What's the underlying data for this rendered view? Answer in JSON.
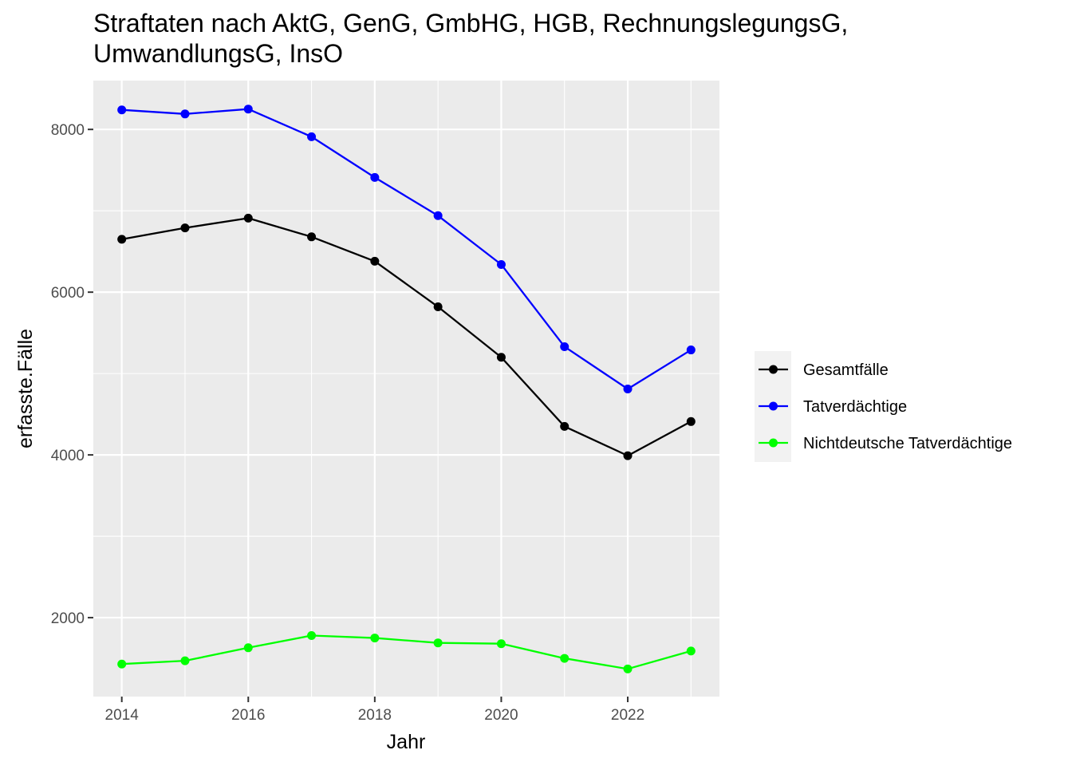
{
  "chart_data": {
    "type": "line",
    "title_lines": [
      "Straftaten nach AktG, GenG, GmbHG, HGB, RechnungslegungsG,",
      "UmwandlungsG, InsO"
    ],
    "xlabel": "Jahr",
    "ylabel": "erfasste.Fälle",
    "x": [
      2014,
      2015,
      2016,
      2017,
      2018,
      2019,
      2020,
      2021,
      2022,
      2023
    ],
    "xlim": [
      2013.55,
      2023.45
    ],
    "ylim": [
      1030,
      8600
    ],
    "x_ticks": [
      2014,
      2016,
      2018,
      2020,
      2022
    ],
    "y_ticks": [
      2000,
      4000,
      6000,
      8000
    ],
    "x_tick_labels": [
      "2014",
      "2016",
      "2018",
      "2020",
      "2022"
    ],
    "y_tick_labels": [
      "2000",
      "4000",
      "6000",
      "8000"
    ],
    "grid": true,
    "legend_position": "right",
    "series": [
      {
        "name": "Gesamtfälle",
        "color": "#000000",
        "values": [
          6650,
          6790,
          6910,
          6680,
          6380,
          5820,
          5200,
          4350,
          3990,
          4410
        ]
      },
      {
        "name": "Tatverdächtige",
        "color": "#0000ff",
        "values": [
          8240,
          8190,
          8250,
          7910,
          7410,
          6940,
          6340,
          5330,
          4810,
          5290
        ]
      },
      {
        "name": "Nichtdeutsche Tatverdächtige",
        "color": "#00ff00",
        "values": [
          1430,
          1470,
          1630,
          1780,
          1750,
          1690,
          1680,
          1500,
          1370,
          1590
        ]
      }
    ]
  }
}
